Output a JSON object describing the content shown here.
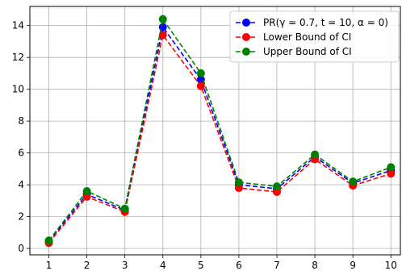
{
  "chart_data": {
    "type": "line",
    "title": "",
    "xlabel": "",
    "ylabel": "",
    "x": [
      1,
      2,
      3,
      4,
      5,
      6,
      7,
      8,
      9,
      10
    ],
    "xlim": [
      0.5,
      10.25
    ],
    "ylim": [
      -0.4,
      15.2
    ],
    "xticks": [
      1,
      2,
      3,
      4,
      5,
      6,
      7,
      8,
      9,
      10
    ],
    "yticks": [
      0,
      2,
      4,
      6,
      8,
      10,
      12,
      14
    ],
    "grid": true,
    "legend_position": "top-right",
    "series": [
      {
        "name": "PR(γ = 0.7, t = 10, α = 0)",
        "color": "#0000ff",
        "values": [
          0.45,
          3.4,
          2.4,
          13.9,
          10.6,
          4.0,
          3.75,
          5.75,
          4.1,
          4.9
        ]
      },
      {
        "name": "Lower Bound of CI",
        "color": "#ff0000",
        "values": [
          0.35,
          3.25,
          2.3,
          13.4,
          10.2,
          3.8,
          3.55,
          5.6,
          3.95,
          4.7
        ]
      },
      {
        "name": "Upper Bound of CI",
        "color": "#008000",
        "values": [
          0.5,
          3.6,
          2.5,
          14.4,
          11.0,
          4.15,
          3.9,
          5.9,
          4.2,
          5.1
        ]
      }
    ]
  }
}
